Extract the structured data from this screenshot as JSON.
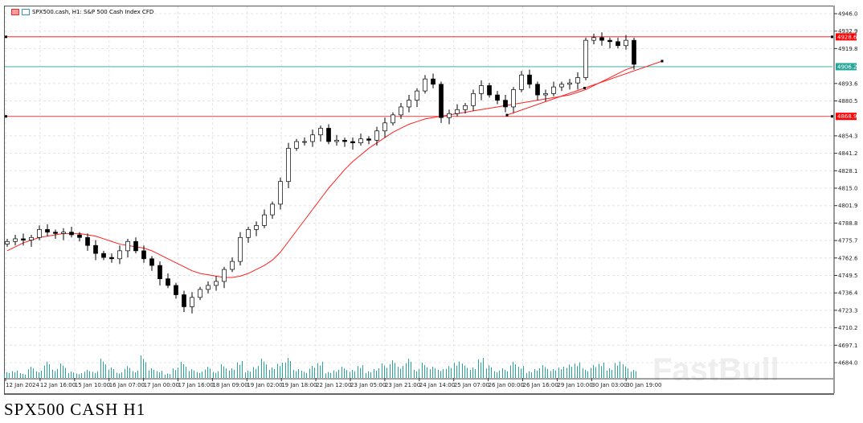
{
  "chart_data": {
    "type": "candlestick",
    "title": "SPX500.cash, H1:  S&P 500 Cash Index CFD",
    "y_ticks": [
      "4946.0",
      "4932.9",
      "4919.8",
      "4893.6",
      "4880.5",
      "4854.3",
      "4841.2",
      "4828.1",
      "4815.0",
      "4801.9",
      "4788.8",
      "4775.7",
      "4762.6",
      "4749.5",
      "4736.4",
      "4723.3",
      "4710.2",
      "4697.1",
      "4684.0"
    ],
    "ylim": [
      4684.0,
      4946.0
    ],
    "x_ticks": [
      "12 Jan 2024",
      "12 Jan 16:00",
      "15 Jan 10:00",
      "16 Jan 07:00",
      "17 Jan 00:00",
      "17 Jan 16:00",
      "18 Jan 09:00",
      "19 Jan 02:00",
      "19 Jan 18:00",
      "22 Jan 12:00",
      "23 Jan 05:00",
      "23 Jan 21:00",
      "24 Jan 14:00",
      "25 Jan 07:00",
      "26 Jan 00:00",
      "26 Jan 16:00",
      "29 Jan 10:00",
      "30 Jan 03:00",
      "30 Jan 19:00"
    ],
    "closes": [
      4775,
      4777,
      4776,
      4778,
      4784,
      4782,
      4781,
      4782,
      4780,
      4778,
      4772,
      4766,
      4763,
      4762,
      4768,
      4775,
      4768,
      4762,
      4757,
      4747,
      4742,
      4735,
      4726,
      4733,
      4739,
      4742,
      4745,
      4754,
      4760,
      4778,
      4784,
      4787,
      4795,
      4803,
      4820,
      4845,
      4850,
      4850,
      4855,
      4860,
      4850,
      4851,
      4850,
      4849,
      4852,
      4851,
      4858,
      4864,
      4870,
      4876,
      4881,
      4888,
      4897,
      4893,
      4868,
      4871,
      4874,
      4877,
      4886,
      4892,
      4885,
      4881,
      4876,
      4889,
      4900,
      4893,
      4885,
      4886,
      4891,
      4893,
      4894,
      4898,
      4926,
      4928,
      4926,
      4925,
      4922,
      4926,
      4908
    ],
    "moving_average": [
      4768,
      4771,
      4774,
      4776,
      4778,
      4779,
      4780,
      4781,
      4781,
      4781,
      4780,
      4779,
      4777,
      4775,
      4773,
      4772,
      4771,
      4770,
      4768,
      4765,
      4762,
      4759,
      4756,
      4753,
      4751,
      4750,
      4749,
      4748,
      4748,
      4749,
      4751,
      4754,
      4757,
      4761,
      4767,
      4775,
      4783,
      4791,
      4799,
      4807,
      4815,
      4822,
      4829,
      4835,
      4840,
      4845,
      4849,
      4853,
      4857,
      4860,
      4863,
      4865,
      4867,
      4868,
      4869,
      4870,
      4871,
      4872,
      4873,
      4874,
      4875,
      4876,
      4877,
      4878,
      4879,
      4880,
      4881,
      4882,
      4883,
      4884,
      4885,
      4887,
      4889,
      4892,
      4895,
      4898,
      4901,
      4904,
      4906
    ],
    "volumes": [
      8,
      10,
      6,
      14,
      9,
      22,
      12,
      18,
      8,
      6,
      11,
      9,
      24,
      13,
      7,
      16,
      10,
      28,
      12,
      9,
      6,
      14,
      20,
      11,
      8,
      15,
      9,
      17,
      12,
      21,
      10,
      16,
      24,
      13,
      19,
      27,
      12,
      9,
      15,
      20,
      8,
      11,
      14,
      10,
      16,
      9,
      13,
      18,
      22,
      15,
      26,
      12,
      19,
      14,
      11,
      16,
      22,
      18,
      13,
      25,
      17,
      10,
      12,
      20,
      15,
      9,
      13,
      16,
      11,
      14,
      18,
      21,
      12,
      16,
      19,
      13,
      22,
      17,
      10
    ],
    "levels": [
      {
        "price": 4928.6,
        "label": "4928.6",
        "color": "#ff0000"
      },
      {
        "price": 4906.2,
        "label": "4906.2",
        "color": "#26a69a"
      },
      {
        "price": 4868.9,
        "label": "4868.9",
        "color": "#ff0000"
      }
    ],
    "trendline": {
      "from": [
        62.2,
        4869.9
      ],
      "to": [
        81.5,
        4910.4
      ]
    },
    "colors": {
      "candle": "#000000",
      "ma": "#ff2020",
      "volume": "#26a69a"
    }
  },
  "caption": "SPX500  CASH  H1",
  "watermark": "FastBull"
}
